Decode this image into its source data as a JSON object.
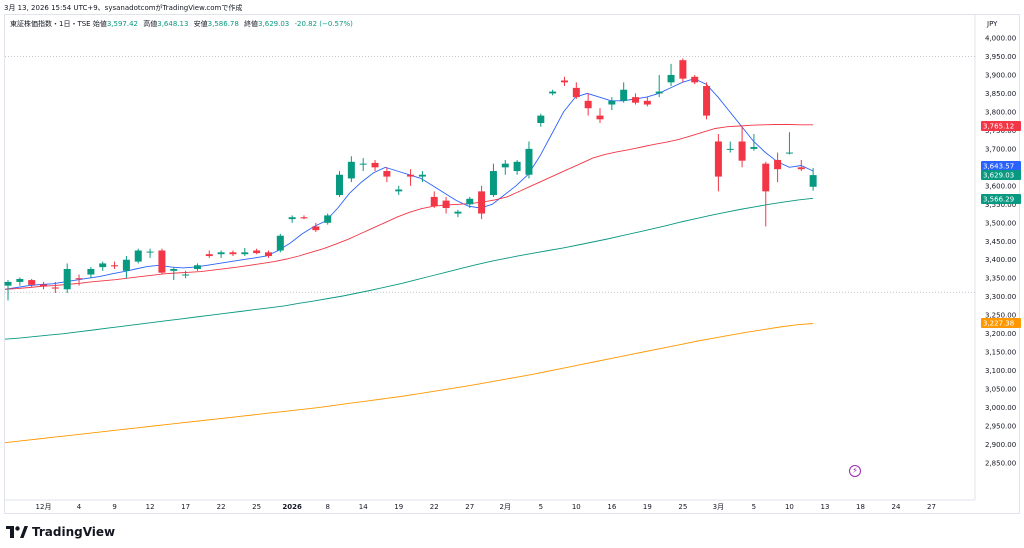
{
  "header": {
    "text": "3月 13, 2026 15:54 UTC+9、sysanadotcomがTradingView.comで作成"
  },
  "legend": {
    "symbol": "東証株価指数・1日・TSE",
    "open_label": "始値",
    "open": "3,597.42",
    "high_label": "高値",
    "high": "3,648.13",
    "low_label": "安値",
    "low": "3,586.78",
    "close_label": "終値",
    "close": "3,629.03",
    "change": "-20.82 (−0.57%)"
  },
  "currency": "JPY",
  "brand": "TradingView",
  "colors": {
    "up": "#089981",
    "down": "#f23645",
    "ma_short": "#2962ff",
    "ma_mid": "#f23645",
    "ma_long": "#089981",
    "ma_200": "#ff9800",
    "badge_blue": "#2962ff",
    "badge_red": "#f23645",
    "badge_green": "#089981",
    "badge_orange": "#ff9800"
  },
  "chart_data": {
    "type": "candlestick",
    "title": "東証株価指数・1日・TSE",
    "ylim": [
      2800,
      4050
    ],
    "yticks": [
      2850,
      2900,
      2950,
      3000,
      3050,
      3100,
      3150,
      3200,
      3250,
      3300,
      3350,
      3400,
      3450,
      3500,
      3550,
      3600,
      3650,
      3700,
      3750,
      3800,
      3850,
      3900,
      3950,
      4000
    ],
    "ytick_labels": [
      "2,850.00",
      "2,900.00",
      "2,950.00",
      "3,000.00",
      "3,050.00",
      "3,100.00",
      "3,150.00",
      "3,200.00",
      "3,250.00",
      "3,300.00",
      "3,350.00",
      "3,400.00",
      "3,450.00",
      "3,500.00",
      "3,550.00",
      "3,600.00",
      "3,650.00",
      "3,700.00",
      "3,750.00",
      "3,800.00",
      "3,850.00",
      "3,900.00",
      "3,950.00",
      "4,000.00"
    ],
    "xtick_labels": [
      "12月",
      "4",
      "9",
      "12",
      "17",
      "22",
      "25",
      "2026",
      "8",
      "14",
      "19",
      "22",
      "27",
      "2月",
      "5",
      "10",
      "16",
      "19",
      "25",
      "3月",
      "5",
      "10",
      "13",
      "18",
      "24",
      "27"
    ],
    "xtick_index": [
      3,
      6,
      9,
      12,
      15,
      18,
      21,
      24,
      27,
      30,
      33,
      36,
      39,
      42,
      45,
      48,
      51,
      54,
      57,
      60,
      63,
      66,
      69,
      72,
      75,
      78
    ],
    "candles": [
      [
        3330,
        3345,
        3290,
        3340
      ],
      [
        3340,
        3352,
        3330,
        3348
      ],
      [
        3345,
        3348,
        3325,
        3332
      ],
      [
        3333,
        3340,
        3320,
        3328
      ],
      [
        3325,
        3340,
        3310,
        3322
      ],
      [
        3320,
        3390,
        3310,
        3375
      ],
      [
        3350,
        3360,
        3330,
        3348
      ],
      [
        3360,
        3380,
        3350,
        3375
      ],
      [
        3380,
        3395,
        3370,
        3390
      ],
      [
        3385,
        3395,
        3375,
        3382
      ],
      [
        3370,
        3410,
        3350,
        3400
      ],
      [
        3395,
        3430,
        3390,
        3425
      ],
      [
        3420,
        3430,
        3405,
        3422
      ],
      [
        3425,
        3430,
        3360,
        3365
      ],
      [
        3370,
        3380,
        3345,
        3375
      ],
      [
        3360,
        3370,
        3350,
        3360
      ],
      [
        3375,
        3390,
        3370,
        3385
      ],
      [
        3415,
        3425,
        3405,
        3410
      ],
      [
        3415,
        3425,
        3405,
        3420
      ],
      [
        3420,
        3425,
        3410,
        3415
      ],
      [
        3415,
        3432,
        3410,
        3420
      ],
      [
        3425,
        3430,
        3415,
        3418
      ],
      [
        3420,
        3425,
        3405,
        3410
      ],
      [
        3425,
        3470,
        3420,
        3465
      ],
      [
        3510,
        3520,
        3500,
        3515
      ],
      [
        3515,
        3520,
        3510,
        3512
      ],
      [
        3490,
        3500,
        3475,
        3480
      ],
      [
        3500,
        3525,
        3495,
        3520
      ],
      [
        3575,
        3640,
        3570,
        3630
      ],
      [
        3620,
        3680,
        3610,
        3665
      ],
      [
        3660,
        3675,
        3640,
        3660
      ],
      [
        3662,
        3670,
        3640,
        3650
      ],
      [
        3640,
        3650,
        3610,
        3625
      ],
      [
        3585,
        3600,
        3575,
        3590
      ],
      [
        3630,
        3645,
        3600,
        3625
      ],
      [
        3625,
        3640,
        3610,
        3630
      ],
      [
        3570,
        3585,
        3540,
        3545
      ],
      [
        3560,
        3570,
        3525,
        3540
      ],
      [
        3525,
        3535,
        3515,
        3530
      ],
      [
        3550,
        3570,
        3540,
        3565
      ],
      [
        3585,
        3600,
        3510,
        3525
      ],
      [
        3575,
        3660,
        3570,
        3640
      ],
      [
        3650,
        3670,
        3630,
        3660
      ],
      [
        3640,
        3670,
        3630,
        3665
      ],
      [
        3630,
        3720,
        3620,
        3700
      ],
      [
        3770,
        3795,
        3760,
        3790
      ],
      [
        3850,
        3860,
        3845,
        3855
      ],
      [
        3885,
        3895,
        3870,
        3880
      ],
      [
        3865,
        3880,
        3835,
        3840
      ],
      [
        3830,
        3850,
        3790,
        3810
      ],
      [
        3790,
        3810,
        3770,
        3780
      ],
      [
        3820,
        3840,
        3805,
        3830
      ],
      [
        3830,
        3880,
        3825,
        3860
      ],
      [
        3840,
        3850,
        3820,
        3825
      ],
      [
        3830,
        3840,
        3815,
        3820
      ],
      [
        3850,
        3900,
        3840,
        3855
      ],
      [
        3880,
        3930,
        3870,
        3900
      ],
      [
        3940,
        3945,
        3880,
        3890
      ],
      [
        3895,
        3900,
        3875,
        3880
      ],
      [
        3870,
        3880,
        3780,
        3790
      ],
      [
        3720,
        3740,
        3585,
        3625
      ],
      [
        3700,
        3720,
        3690,
        3700
      ],
      [
        3720,
        3760,
        3650,
        3668
      ],
      [
        3700,
        3740,
        3695,
        3705
      ],
      [
        3660,
        3665,
        3490,
        3585
      ],
      [
        3670,
        3690,
        3610,
        3645
      ],
      [
        3690,
        3745,
        3685,
        3690
      ],
      [
        3650,
        3670,
        3640,
        3645
      ],
      [
        3597.42,
        3648.13,
        3586.78,
        3629.03
      ]
    ],
    "series": [
      {
        "name": "MA short",
        "values": [
          3320,
          3325,
          3330,
          3333,
          3335,
          3340,
          3345,
          3350,
          3355,
          3362,
          3368,
          3375,
          3382,
          3385,
          3380,
          3378,
          3380,
          3385,
          3390,
          3395,
          3400,
          3405,
          3410,
          3425,
          3445,
          3470,
          3490,
          3505,
          3540,
          3580,
          3610,
          3635,
          3650,
          3640,
          3630,
          3620,
          3600,
          3580,
          3560,
          3545,
          3540,
          3550,
          3575,
          3600,
          3630,
          3680,
          3740,
          3800,
          3840,
          3850,
          3840,
          3830,
          3830,
          3835,
          3840,
          3850,
          3865,
          3880,
          3890,
          3875,
          3840,
          3800,
          3760,
          3720,
          3690,
          3665,
          3650,
          3655,
          3640
        ]
      },
      {
        "name": "MA mid",
        "values": [
          3320,
          3322,
          3325,
          3328,
          3330,
          3333,
          3336,
          3340,
          3343,
          3346,
          3350,
          3354,
          3358,
          3362,
          3364,
          3366,
          3368,
          3372,
          3376,
          3380,
          3385,
          3390,
          3395,
          3402,
          3410,
          3420,
          3430,
          3442,
          3455,
          3470,
          3485,
          3500,
          3515,
          3528,
          3538,
          3545,
          3548,
          3550,
          3552,
          3556,
          3562,
          3570,
          3585,
          3600,
          3615,
          3630,
          3645,
          3660,
          3675,
          3685,
          3692,
          3698,
          3705,
          3712,
          3718,
          3725,
          3735,
          3745,
          3755,
          3760,
          3762,
          3764,
          3765,
          3766,
          3766,
          3765.12,
          3765.12
        ]
      },
      {
        "name": "MA long",
        "values": [
          3185,
          3188,
          3192,
          3196,
          3200,
          3205,
          3210,
          3215,
          3220,
          3225,
          3230,
          3235,
          3240,
          3245,
          3250,
          3255,
          3260,
          3265,
          3270,
          3275,
          3282,
          3288,
          3295,
          3302,
          3310,
          3318,
          3327,
          3336,
          3346,
          3356,
          3366,
          3376,
          3386,
          3395,
          3403,
          3411,
          3418,
          3425,
          3432,
          3440,
          3448,
          3456,
          3465,
          3474,
          3483,
          3492,
          3502,
          3511,
          3520,
          3528,
          3536,
          3543,
          3550,
          3556,
          3562,
          3566.29
        ]
      },
      {
        "name": "MA 200",
        "values": [
          2905,
          2910,
          2915,
          2920,
          2925,
          2930,
          2935,
          2940,
          2945,
          2950,
          2955,
          2960,
          2965,
          2970,
          2975,
          2980,
          2985,
          2990,
          2995,
          3000,
          3006,
          3012,
          3018,
          3024,
          3030,
          3037,
          3044,
          3051,
          3058,
          3066,
          3074,
          3082,
          3090,
          3099,
          3108,
          3117,
          3126,
          3135,
          3144,
          3153,
          3162,
          3171,
          3180,
          3188,
          3196,
          3204,
          3211,
          3218,
          3224,
          3227.38
        ]
      }
    ],
    "price_badges": [
      {
        "label": "3,765.12",
        "value": 3765.12,
        "color": "red"
      },
      {
        "label": "3,643.57",
        "value": 3643.57,
        "color": "blue"
      },
      {
        "label": "3,629.03",
        "value": 3629.03,
        "color": "green"
      },
      {
        "label": "3,566.29",
        "value": 3566.29,
        "color": "green"
      },
      {
        "label": "3,227.38",
        "value": 3227.38,
        "color": "orange"
      }
    ],
    "dotted_lines": [
      3950,
      3312
    ]
  }
}
